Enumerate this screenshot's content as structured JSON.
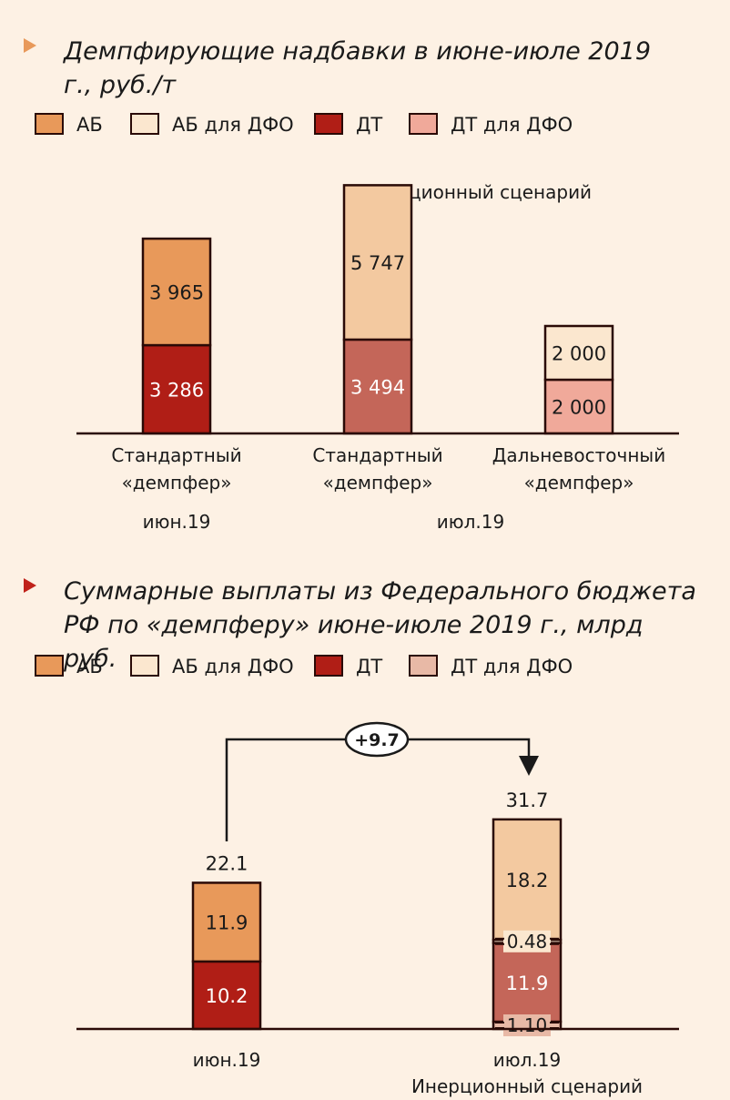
{
  "chart_data": [
    {
      "type": "bar",
      "stacked": true,
      "title": "Демпфирующие надбавки в июне-июле 2019 г., руб./т",
      "legend": [
        "АБ",
        "АБ для ДФО",
        "ДТ",
        "ДТ для ДФО"
      ],
      "legend_colors": [
        "#e8995a",
        "#fbe7cf",
        "#b01e16",
        "#f0a99a"
      ],
      "scenario_label": "Инерционный сценарий",
      "categories": [
        "Стандартный «демпфер»",
        "Стандартный «демпфер»",
        "Дальневосточный «демпфер»"
      ],
      "category_lines": [
        [
          "Стандартный",
          "«демпфер»"
        ],
        [
          "Стандартный",
          "«демпфер»"
        ],
        [
          "Дальневосточный",
          "«демпфер»"
        ]
      ],
      "period_labels": [
        "июн.19",
        "июл.19"
      ],
      "bars": [
        {
          "segments": [
            {
              "series": "ДТ",
              "value": 3286,
              "label": "3 286",
              "color": "#b01e16",
              "text_color": "#ffffff"
            },
            {
              "series": "АБ",
              "value": 3965,
              "label": "3 965",
              "color": "#e8995a",
              "text_color": "#1a1a1a"
            }
          ]
        },
        {
          "segments": [
            {
              "series": "ДТ",
              "value": 3494,
              "label": "3 494",
              "color": "#c46659",
              "text_color": "#ffffff"
            },
            {
              "series": "АБ",
              "value": 5747,
              "label": "5 747",
              "color": "#f3c9a0",
              "text_color": "#1a1a1a"
            }
          ]
        },
        {
          "segments": [
            {
              "series": "ДТ для ДФО",
              "value": 2000,
              "label": "2 000",
              "color": "#f0a99a",
              "text_color": "#1a1a1a"
            },
            {
              "series": "АБ для ДФО",
              "value": 2000,
              "label": "2 000",
              "color": "#fbe7cf",
              "text_color": "#1a1a1a"
            }
          ]
        }
      ]
    },
    {
      "type": "bar",
      "stacked": true,
      "title": "Суммарные выплаты из Федерального бюджета РФ по «демпферу» июне-июле 2019 г., млрд руб.",
      "legend": [
        "АБ",
        "АБ для ДФО",
        "ДТ",
        "ДТ для ДФО"
      ],
      "legend_colors": [
        "#e8995a",
        "#fbe7cf",
        "#b01e16",
        "#e8b9a6"
      ],
      "categories": [
        "июн.19",
        "июл.19"
      ],
      "category_sub": [
        "",
        "Инерционный сценарий"
      ],
      "totals": [
        "22.1",
        "31.7"
      ],
      "difference": "+9.7",
      "bars": [
        {
          "segments": [
            {
              "series": "ДТ",
              "value": 10.2,
              "label": "10.2",
              "color": "#b01e16",
              "text_color": "#ffffff"
            },
            {
              "series": "АБ",
              "value": 11.9,
              "label": "11.9",
              "color": "#e8995a",
              "text_color": "#1a1a1a"
            }
          ]
        },
        {
          "segments": [
            {
              "series": "ДТ для ДФО",
              "value": 1.1,
              "label": "1.10",
              "color": "#e8b9a6",
              "text_color": "#1a1a1a"
            },
            {
              "series": "ДТ",
              "value": 11.9,
              "label": "11.9",
              "color": "#c46659",
              "text_color": "#ffffff"
            },
            {
              "series": "АБ для ДФО",
              "value": 0.48,
              "label": "0.48",
              "color": "#fbe7cf",
              "text_color": "#1a1a1a"
            },
            {
              "series": "АБ",
              "value": 18.2,
              "label": "18.2",
              "color": "#f3c9a0",
              "text_color": "#1a1a1a"
            }
          ]
        }
      ]
    }
  ],
  "colors": {
    "bg": "#fdf1e4",
    "outline": "#2a0a06",
    "title1_marker": "#e8995a",
    "title2_marker": "#c0221a"
  }
}
